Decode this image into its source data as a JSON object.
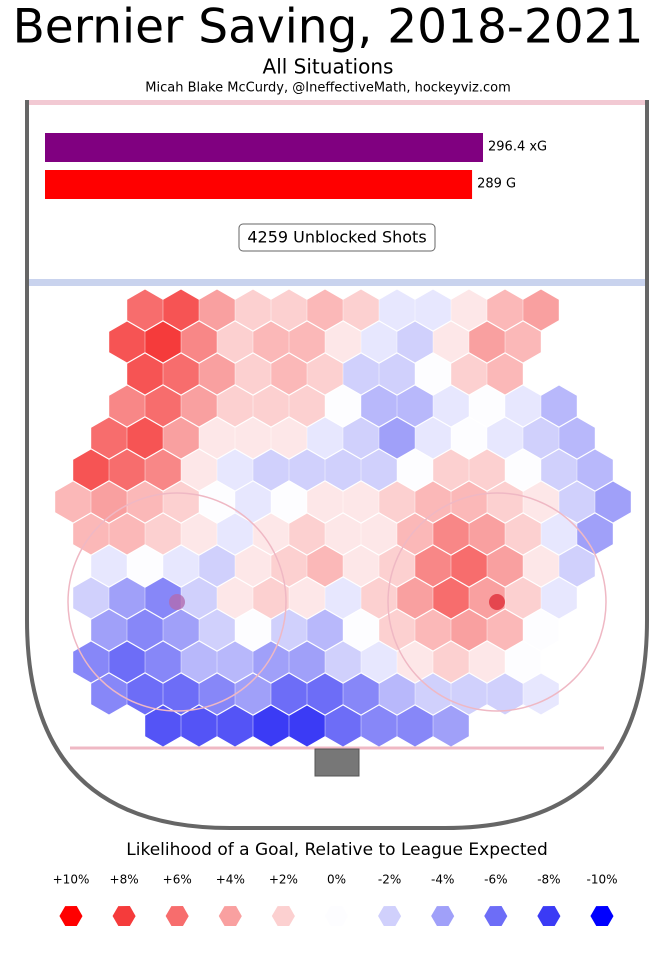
{
  "chart_data": {
    "type": "hexbin",
    "title": "Bernier Saving, 2018-2021",
    "subtitle": "All Situations",
    "credit": "Micah Blake McCurdy, @IneffectiveMath, hockeyviz.com",
    "bars": [
      {
        "value": 296.4,
        "label": "296.4 xG",
        "color": "#800080"
      },
      {
        "value": 289,
        "label": "289 G",
        "color": "#ff0000"
      }
    ],
    "shots_label": "4259 Unblocked Shots",
    "legend_title": "Likelihood of a Goal, Relative to League Expected",
    "legend": [
      {
        "value": 10,
        "label": "+10%",
        "color": "#ff0000"
      },
      {
        "value": 8,
        "label": "+8%",
        "color": "#f53b3b"
      },
      {
        "value": 6,
        "label": "+6%",
        "color": "#f76d6d"
      },
      {
        "value": 4,
        "label": "+4%",
        "color": "#f9a0a0"
      },
      {
        "value": 2,
        "label": "+2%",
        "color": "#fcd0d0"
      },
      {
        "value": 0,
        "label": "0%",
        "color": "#fdfdff"
      },
      {
        "value": -2,
        "label": "-2%",
        "color": "#d0d0fc"
      },
      {
        "value": -4,
        "label": "-4%",
        "color": "#a0a0f9"
      },
      {
        "value": -6,
        "label": "-6%",
        "color": "#6d6df7"
      },
      {
        "value": -8,
        "label": "-8%",
        "color": "#3b3bf5"
      },
      {
        "value": -10,
        "label": "-10%",
        "color": "#0000ff"
      }
    ],
    "hex": {
      "rows": [
        [
          null,
          null,
          6,
          7,
          4,
          2,
          2,
          3,
          2,
          -1,
          -1,
          1,
          3,
          4,
          null,
          null
        ],
        [
          null,
          7,
          8,
          5,
          2,
          3,
          3,
          1,
          -1,
          -2,
          1,
          4,
          3,
          null,
          null,
          null
        ],
        [
          null,
          null,
          7,
          6,
          4,
          2,
          3,
          2,
          -2,
          -2,
          0,
          2,
          3,
          null,
          null,
          null
        ],
        [
          null,
          5,
          6,
          4,
          2,
          2,
          2,
          0,
          -3,
          -3,
          -1,
          0,
          -1,
          -3,
          null,
          null
        ],
        [
          null,
          6,
          7,
          4,
          1,
          1,
          1,
          -1,
          -2,
          -4,
          -1,
          0,
          -1,
          -2,
          -3,
          null
        ],
        [
          7,
          6,
          5,
          1,
          -1,
          -2,
          -2,
          -2,
          -2,
          0,
          2,
          2,
          0,
          -2,
          -3,
          null
        ],
        [
          3,
          4,
          3,
          2,
          0,
          -1,
          0,
          1,
          1,
          2,
          3,
          3,
          2,
          1,
          -2,
          -4
        ],
        [
          3,
          3,
          2,
          1,
          -1,
          1,
          2,
          1,
          1,
          3,
          5,
          4,
          2,
          -1,
          -4,
          null
        ],
        [
          null,
          -1,
          0,
          -1,
          -2,
          1,
          2,
          3,
          1,
          2,
          5,
          6,
          4,
          1,
          -2,
          null
        ],
        [
          -2,
          -4,
          -5,
          -2,
          1,
          2,
          1,
          -1,
          2,
          4,
          6,
          4,
          2,
          -1,
          null,
          null
        ],
        [
          null,
          -4,
          -5,
          -4,
          -2,
          0,
          -2,
          -3,
          0,
          2,
          3,
          4,
          3,
          0,
          null,
          null
        ],
        [
          -5,
          -6,
          -5,
          -3,
          -3,
          -4,
          -4,
          -2,
          -1,
          1,
          2,
          1,
          0,
          null,
          null,
          null
        ],
        [
          null,
          -5,
          -6,
          -6,
          -5,
          -4,
          -6,
          -6,
          -5,
          -3,
          -2,
          -2,
          -2,
          -1,
          null,
          null
        ],
        [
          null,
          null,
          -7,
          -7,
          -7,
          -8,
          -8,
          -6,
          -5,
          -5,
          -4,
          null,
          null,
          null,
          null,
          null
        ]
      ]
    }
  }
}
